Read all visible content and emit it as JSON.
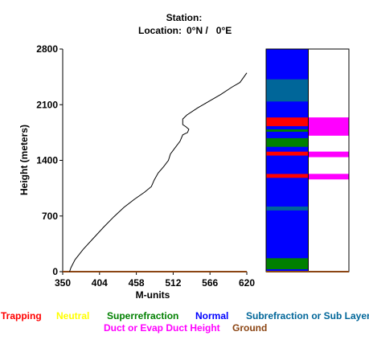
{
  "header": {
    "station_label": "Station:",
    "location_label": "Location:",
    "location_value": "0°N /   0°E"
  },
  "colors": {
    "trapping": "#ff0000",
    "neutral": "#ffff00",
    "superrefraction": "#008000",
    "normal": "#0000ff",
    "subrefraction": "#006699",
    "duct": "#ff00ff",
    "ground": "#8b4513"
  },
  "legend": {
    "trapping": "Trapping",
    "neutral": "Neutral",
    "superrefraction": "Superrefraction",
    "normal": "Normal",
    "subrefraction": "Subrefraction or Sub Layer",
    "duct": "Duct or Evap Duct Height",
    "ground": "Ground"
  },
  "chart_data": {
    "type": "line",
    "xlabel": "M-units",
    "ylabel": "Height (meters)",
    "xlim": [
      350,
      620
    ],
    "ylim": [
      0,
      2800
    ],
    "x_ticks": [
      "350",
      "404",
      "458",
      "512",
      "566",
      "620"
    ],
    "y_ticks": [
      "0",
      "700",
      "1400",
      "2100",
      "2800"
    ],
    "series": [
      {
        "points": [
          [
            360,
            0
          ],
          [
            362,
            50
          ],
          [
            368,
            150
          ],
          [
            380,
            280
          ],
          [
            395,
            420
          ],
          [
            410,
            560
          ],
          [
            425,
            690
          ],
          [
            440,
            810
          ],
          [
            455,
            910
          ],
          [
            470,
            1000
          ],
          [
            480,
            1070
          ],
          [
            484,
            1150
          ],
          [
            490,
            1240
          ],
          [
            498,
            1320
          ],
          [
            505,
            1400
          ],
          [
            508,
            1480
          ],
          [
            515,
            1560
          ],
          [
            522,
            1640
          ],
          [
            526,
            1720
          ],
          [
            533,
            1750
          ],
          [
            535,
            1790
          ],
          [
            531,
            1820
          ],
          [
            526,
            1850
          ],
          [
            526,
            1920
          ],
          [
            532,
            1970
          ],
          [
            548,
            2060
          ],
          [
            566,
            2150
          ],
          [
            582,
            2230
          ],
          [
            598,
            2320
          ],
          [
            610,
            2380
          ],
          [
            620,
            2500
          ]
        ]
      }
    ],
    "layers_left": [
      {
        "from": 0,
        "to": 30,
        "type": "normal"
      },
      {
        "from": 30,
        "to": 170,
        "type": "superrefraction"
      },
      {
        "from": 170,
        "to": 770,
        "type": "normal"
      },
      {
        "from": 770,
        "to": 820,
        "type": "subrefraction"
      },
      {
        "from": 820,
        "to": 1180,
        "type": "normal"
      },
      {
        "from": 1180,
        "to": 1230,
        "type": "trapping"
      },
      {
        "from": 1230,
        "to": 1460,
        "type": "normal"
      },
      {
        "from": 1460,
        "to": 1510,
        "type": "trapping"
      },
      {
        "from": 1510,
        "to": 1570,
        "type": "normal"
      },
      {
        "from": 1570,
        "to": 1680,
        "type": "superrefraction"
      },
      {
        "from": 1680,
        "to": 1760,
        "type": "normal"
      },
      {
        "from": 1760,
        "to": 1790,
        "type": "superrefraction"
      },
      {
        "from": 1790,
        "to": 1830,
        "type": "normal"
      },
      {
        "from": 1830,
        "to": 1940,
        "type": "trapping"
      },
      {
        "from": 1940,
        "to": 2140,
        "type": "normal"
      },
      {
        "from": 2140,
        "to": 2420,
        "type": "subrefraction"
      },
      {
        "from": 2420,
        "to": 2800,
        "type": "normal"
      }
    ],
    "ducts_right": [
      {
        "from": 1160,
        "to": 1230
      },
      {
        "from": 1440,
        "to": 1510
      },
      {
        "from": 1710,
        "to": 1940
      }
    ]
  }
}
